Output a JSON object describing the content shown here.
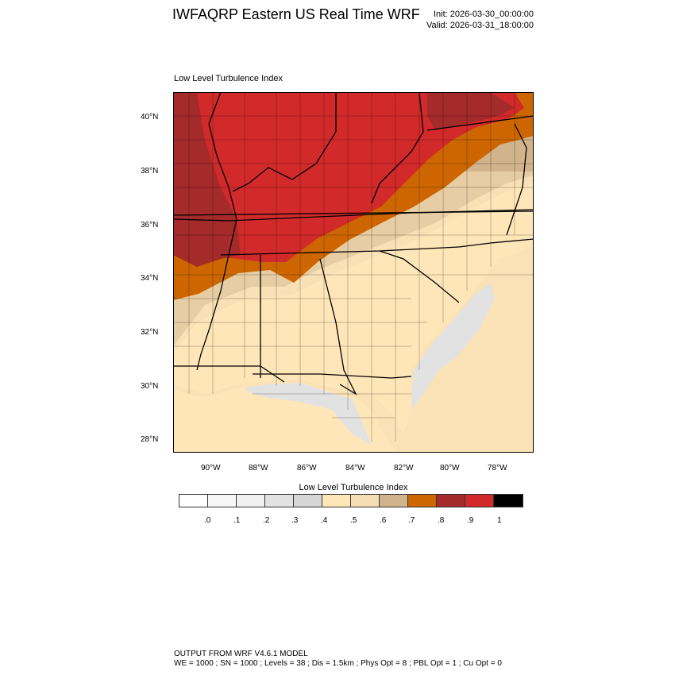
{
  "header": {
    "title": "IWFAQRP Eastern US Real Time WRF",
    "init": "Init: 2026-03-30_00:00:00",
    "valid": "Valid: 2026-03-31_18:00:00"
  },
  "plot": {
    "subtitle": "Low Level Turbulence Index",
    "lon_ticks": [
      "90°W",
      "88°W",
      "86°W",
      "84°W",
      "82°W",
      "80°W",
      "78°W"
    ],
    "lat_ticks": [
      "40°N",
      "38°N",
      "36°N",
      "34°N",
      "32°N",
      "30°N",
      "28°N"
    ]
  },
  "colorbar": {
    "title": "Low Level Turbulence Index",
    "colors": [
      "#ffffff",
      "#f7f7f7",
      "#f0f0f0",
      "#e2e2e2",
      "#d6d6d6",
      "#ffe6b9",
      "#f5deb3",
      "#d2b48c",
      "#cd6600",
      "#a52a2a",
      "#d22a2a",
      "#000000"
    ],
    "labels": [
      ".0",
      ".1",
      ".2",
      ".3",
      ".4",
      ".5",
      ".6",
      ".7",
      ".8",
      ".9",
      "1"
    ]
  },
  "footer": {
    "line1": "OUTPUT FROM WRF V4.6.1 MODEL",
    "line2": "WE = 1000 ; SN = 1000 ; Levels = 38 ; Dis = 1.5km ; Phys Opt = 8 ; PBL Opt = 1 ; Cu Opt = 0"
  }
}
